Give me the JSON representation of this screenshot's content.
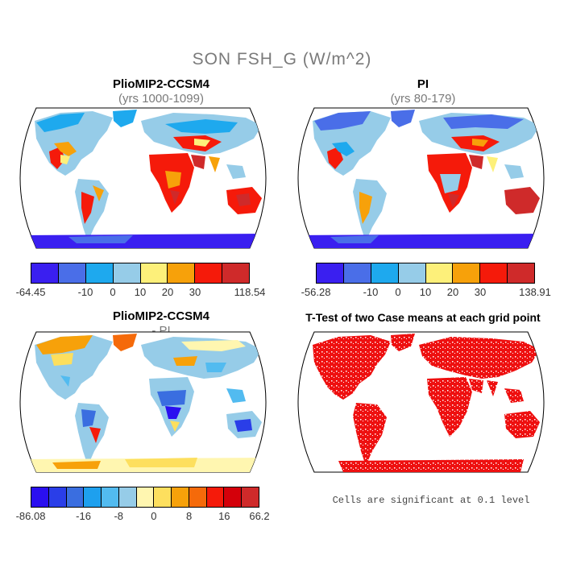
{
  "title": "SON FSH_G (W/m^2)",
  "panels": {
    "top_left": {
      "title": "PlioMIP2-CCSM4",
      "subtitle": "(yrs 1000-1099)",
      "colorbar": {
        "colors": [
          "#3a1ff0",
          "#4a6ee8",
          "#1ea9ee",
          "#96cce8",
          "#fdf07a",
          "#f7a10a",
          "#f51a0a",
          "#cf2a2a"
        ],
        "labels": [
          "-64.45",
          "-10",
          "0",
          "10",
          "20",
          "30",
          "118.54"
        ]
      }
    },
    "top_right": {
      "title": "PI",
      "subtitle": "(yrs 80-179)",
      "colorbar": {
        "colors": [
          "#3a1ff0",
          "#4a6ee8",
          "#1ea9ee",
          "#96cce8",
          "#fdf07a",
          "#f7a10a",
          "#f51a0a",
          "#cf2a2a"
        ],
        "labels": [
          "-56.28",
          "-10",
          "0",
          "10",
          "20",
          "30",
          "138.91"
        ]
      }
    },
    "bottom_left": {
      "title": "PlioMIP2-CCSM4",
      "subtitle": "- PI",
      "colorbar": {
        "colors": [
          "#2a0ff0",
          "#2a3ee8",
          "#3a6ee0",
          "#1ea0ee",
          "#52bbf0",
          "#96cce8",
          "#fff6b0",
          "#fddf5e",
          "#f7a10a",
          "#f56a0a",
          "#f51a0a",
          "#d4000a",
          "#cf2a2a"
        ],
        "labels": [
          "-86.08",
          "-16",
          "-8",
          "0",
          "8",
          "16",
          "66.2"
        ]
      }
    },
    "bottom_right": {
      "title": "T-Test of two Case means at each grid point",
      "note": "Cells are significant at 0.1 level",
      "color": "#ee1010"
    }
  }
}
